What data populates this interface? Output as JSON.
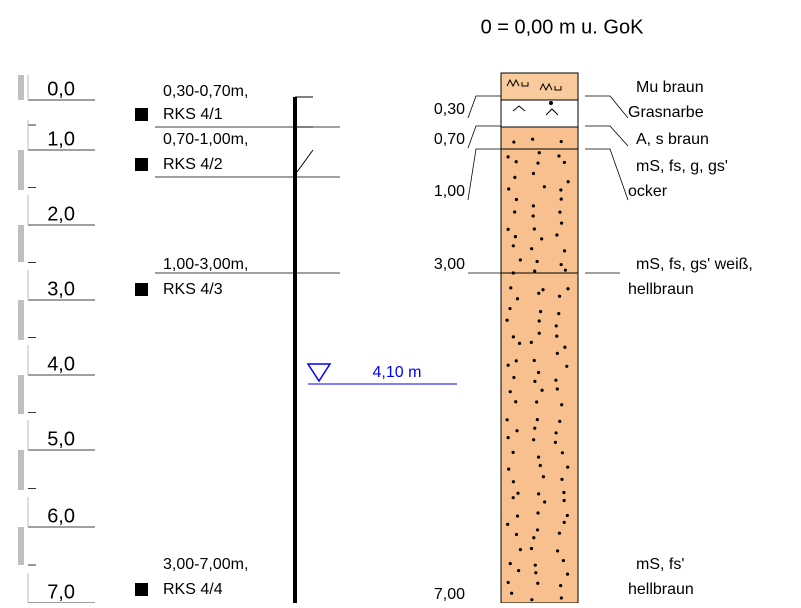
{
  "header": {
    "title": "0 = 0,00 m u. GoK"
  },
  "scale": {
    "labels": [
      "0,0",
      "1,0",
      "2,0",
      "3,0",
      "4,0",
      "5,0",
      "6,0",
      "7,0"
    ]
  },
  "samples": [
    {
      "range": "0,30-0,70m,",
      "name": "RKS 4/1"
    },
    {
      "range": "0,70-1,00m,",
      "name": "RKS 4/2"
    },
    {
      "range": "1,00-3,00m,",
      "name": "RKS 4/3"
    },
    {
      "range": "3,00-7,00m,",
      "name": "RKS 4/4"
    }
  ],
  "water_level": {
    "label": "4,10 m"
  },
  "depths": [
    "0,30",
    "0,70",
    "1,00",
    "3,00",
    "7,00"
  ],
  "layers": [
    {
      "lines": [
        "Mu braun",
        "Grasnarbe"
      ]
    },
    {
      "lines": [
        "A, s braun"
      ]
    },
    {
      "lines": [
        "mS, fs, g, gs'",
        "ocker"
      ]
    },
    {
      "lines": [
        "mS, fs, gs' weiß,",
        "hellbraun"
      ]
    },
    {
      "lines": [
        "mS, fs'",
        "hellbraun"
      ]
    }
  ]
}
